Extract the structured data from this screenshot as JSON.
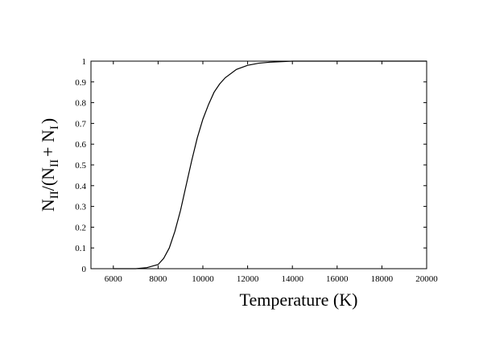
{
  "chart_data": {
    "type": "line",
    "title": "",
    "xlabel": "Temperature (K)",
    "ylabel": {
      "part1": "N",
      "sub1": "II",
      "part2": "/(N",
      "sub2": "II",
      "part3": "+ N",
      "sub3": "I",
      "part4": ")"
    },
    "xlim": [
      5000,
      20000
    ],
    "ylim": [
      0,
      1
    ],
    "xticks": [
      6000,
      8000,
      10000,
      12000,
      14000,
      16000,
      18000,
      20000
    ],
    "yticks": [
      0,
      0.1,
      0.2,
      0.3,
      0.4,
      0.5,
      0.6,
      0.7,
      0.8,
      0.9,
      1
    ],
    "grid": false,
    "series": [
      {
        "x": [
          6000,
          7000,
          7500,
          8000,
          8250,
          8500,
          8750,
          9000,
          9250,
          9500,
          9750,
          10000,
          10250,
          10500,
          10750,
          11000,
          11500,
          12000,
          12500,
          13000,
          14000,
          16000,
          18000,
          20000
        ],
        "y": [
          0.0,
          0.0,
          0.005,
          0.02,
          0.05,
          0.1,
          0.18,
          0.28,
          0.4,
          0.52,
          0.63,
          0.72,
          0.79,
          0.85,
          0.89,
          0.92,
          0.96,
          0.98,
          0.99,
          0.995,
          1.0,
          1.0,
          1.0,
          1.0
        ]
      }
    ]
  }
}
